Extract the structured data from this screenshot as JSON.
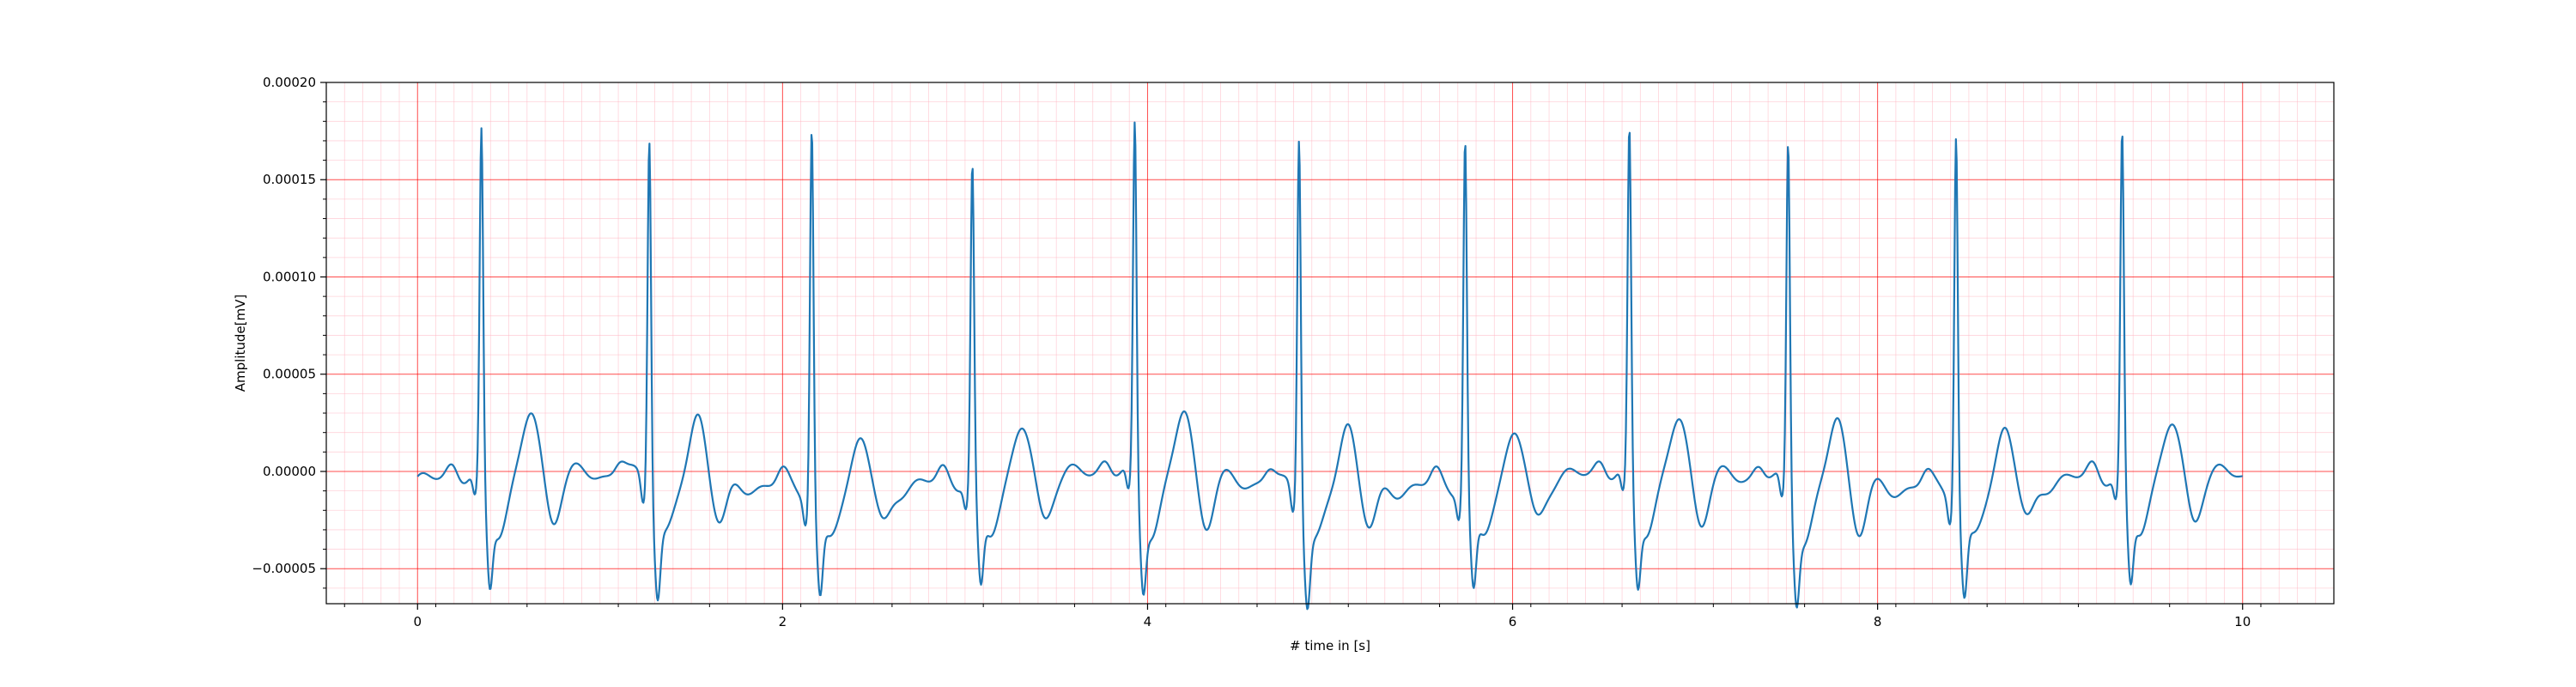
{
  "chart_data": {
    "type": "line",
    "title": "",
    "xlabel": "# time in [s]",
    "ylabel": "Amplitude[mV]",
    "xlim": [
      -0.5,
      10.5
    ],
    "ylim": [
      -6.8e-05,
      0.0002
    ],
    "x_ticks": [
      0,
      2,
      4,
      6,
      8,
      10
    ],
    "x_tick_labels": [
      "0",
      "2",
      "4",
      "6",
      "8",
      "10"
    ],
    "y_ticks": [
      -5e-05,
      0,
      5e-05,
      0.0001,
      0.00015,
      0.0002
    ],
    "y_tick_labels": [
      "−0.00005",
      "0.00000",
      "0.00005",
      "0.00010",
      "0.00015",
      "0.00020"
    ],
    "grid": {
      "major": true,
      "minor": true,
      "major_color": "#ff0000",
      "minor_color": "#ffb6c1"
    },
    "series": [
      {
        "color": "#1f77b4",
        "x_start": 0,
        "x_end": 10,
        "baseline": -5e-06,
        "r_peaks": [
          {
            "t": 0.35,
            "amp": 0.000174
          },
          {
            "t": 1.27,
            "amp": 0.000179
          },
          {
            "t": 2.16,
            "amp": 0.000189
          },
          {
            "t": 3.04,
            "amp": 0.00016
          },
          {
            "t": 3.93,
            "amp": 0.000178
          },
          {
            "t": 4.83,
            "amp": 0.000184
          },
          {
            "t": 5.74,
            "amp": 0.000178
          },
          {
            "t": 6.64,
            "amp": 0.000174
          },
          {
            "t": 7.51,
            "amp": 0.000174
          },
          {
            "t": 8.43,
            "amp": 0.000186
          },
          {
            "t": 9.34,
            "amp": 0.000173
          }
        ],
        "s_depth": -5e-05,
        "t_wave_amp": 3.5e-05,
        "t_wave_offset": 0.27
      }
    ]
  }
}
